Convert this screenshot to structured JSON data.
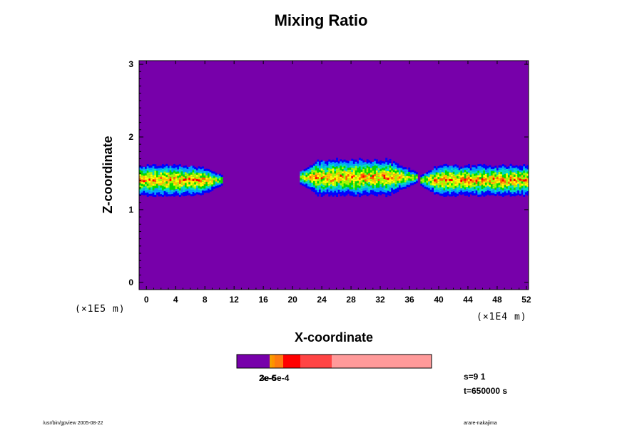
{
  "chart_data": {
    "type": "heatmap",
    "title": "Mixing Ratio",
    "xlabel": "X-coordinate",
    "ylabel": "Z-coordinate",
    "x_scale_label": "(×1E4 m)",
    "y_scale_label": "(×1E5 m)",
    "xlim": [
      -1,
      52.3
    ],
    "ylim": [
      -0.1,
      3.05
    ],
    "x_ticks": [
      "0",
      "4",
      "8",
      "12",
      "16",
      "20",
      "24",
      "28",
      "32",
      "36",
      "40",
      "44",
      "48",
      "52"
    ],
    "y_ticks": [
      "0",
      "1",
      "2",
      "3"
    ],
    "background_color": "#7700aa",
    "bands": [
      {
        "x_start": -1,
        "x_end": 10.3,
        "z_center": 1.42,
        "half_width": 0.2
      },
      {
        "x_start": 21.0,
        "x_end": 37.0,
        "z_center": 1.46,
        "half_width": 0.24
      },
      {
        "x_start": 37.5,
        "x_end": 52.3,
        "z_center": 1.42,
        "half_width": 0.2
      }
    ],
    "colorbar": {
      "colors": [
        "#7700aa",
        "#f5a000",
        "#ff9200",
        "#ff7a10",
        "#ff0000",
        "#ff4444",
        "#ff9a9a"
      ],
      "label": "3e-5e-4",
      "label_overlap": "2e-6"
    },
    "annotations": {
      "s": "s=9 1",
      "t": "t=650000 s"
    }
  },
  "footer": {
    "left": "/usr/bin/gpview 2005-08-22",
    "right": "arare-nakajima"
  }
}
